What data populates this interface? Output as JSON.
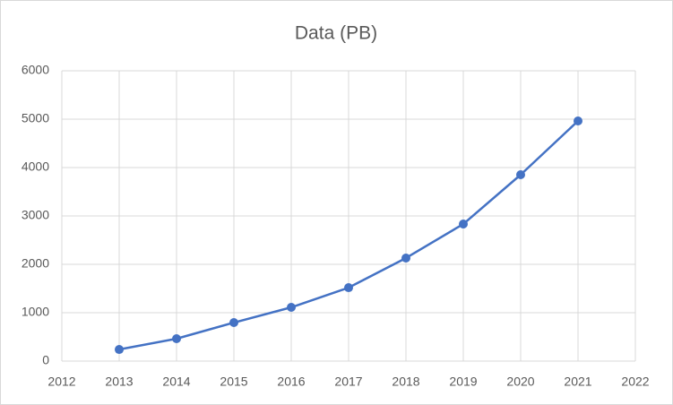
{
  "chart_data": {
    "type": "line",
    "title": "Data (PB)",
    "x": [
      2013,
      2014,
      2015,
      2016,
      2017,
      2018,
      2019,
      2020,
      2021
    ],
    "series": [
      {
        "name": "Data (PB)",
        "color": "#4472c4",
        "values": [
          240,
          463,
          796,
          1111,
          1518,
          2130,
          2833,
          3852,
          4963
        ]
      }
    ],
    "xlim": [
      2012,
      2022
    ],
    "xticks": [
      2012,
      2013,
      2014,
      2015,
      2016,
      2017,
      2018,
      2019,
      2020,
      2021,
      2022
    ],
    "ylim": [
      0,
      6000
    ],
    "yticks": [
      0,
      1000,
      2000,
      3000,
      4000,
      5000,
      6000
    ],
    "grid": true
  }
}
